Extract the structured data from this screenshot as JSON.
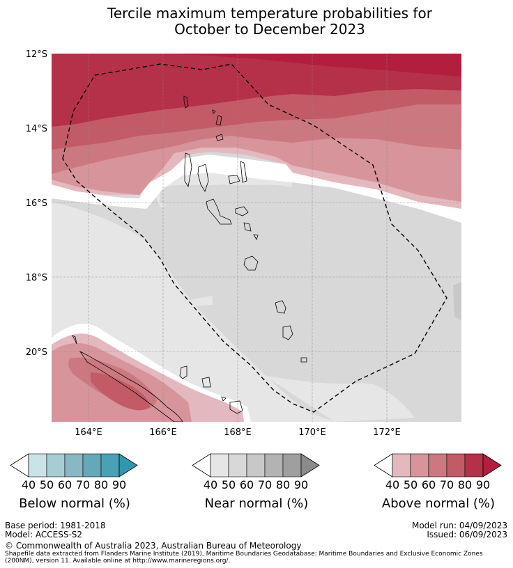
{
  "title": {
    "line1": "Tercile maximum temperature probabilities for",
    "line2": "October to December 2023"
  },
  "axes": {
    "lat_labels": [
      "12°S",
      "14°S",
      "16°S",
      "18°S",
      "20°S"
    ],
    "lon_labels": [
      "164°E",
      "166°E",
      "168°E",
      "170°E",
      "172°E"
    ]
  },
  "legends": [
    {
      "id": "below",
      "title": "Below normal (%)",
      "ticks": [
        "40",
        "50",
        "60",
        "70",
        "80",
        "90"
      ],
      "colors": [
        "#ffffff",
        "#c9e3e9",
        "#a8ccd4",
        "#89b8c4",
        "#66a8b9",
        "#4aa1b5",
        "#2f97ae"
      ]
    },
    {
      "id": "near",
      "title": "Near normal (%)",
      "ticks": [
        "40",
        "50",
        "60",
        "70",
        "80",
        "90"
      ],
      "colors": [
        "#ffffff",
        "#e6e6e6",
        "#d8d8d8",
        "#c8c8c8",
        "#b3b3b3",
        "#9f9f9f",
        "#8a8a8a"
      ]
    },
    {
      "id": "above",
      "title": "Above normal (%)",
      "ticks": [
        "40",
        "50",
        "60",
        "70",
        "80",
        "90"
      ],
      "colors": [
        "#ffffff",
        "#e3b8be",
        "#d7949b",
        "#cc7880",
        "#c25b66",
        "#b53049",
        "#b31e3e"
      ]
    }
  ],
  "footer": {
    "base_period": "Base period: 1981-2018",
    "model": "Model: ACCESS-S2",
    "model_run": "Model run: 04/09/2023",
    "issued": "Issued: 06/09/2023",
    "copyright": "© Commonwealth of Australia 2023, Australian Bureau of Meteorology",
    "source": "Shapefile data extracted from Flanders Marine Institute (2019), Maritime Boundaries Geodatabase: Maritime Boundaries and Exclusive Economic Zones (200NM), version 11. Available online at http://www.marineregions.org/."
  }
}
